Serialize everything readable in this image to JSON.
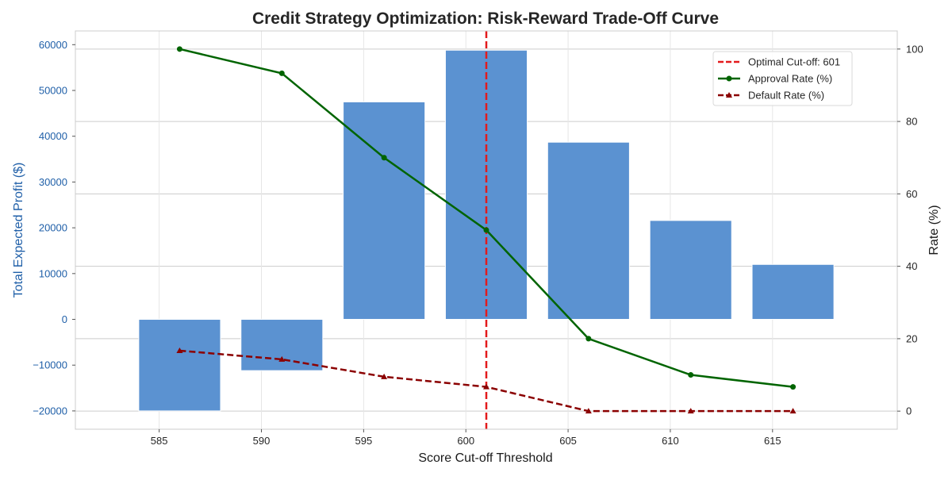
{
  "chart_data": {
    "type": "bar",
    "title": "Credit Strategy Optimization: Risk-Reward Trade-Off Curve",
    "xlabel": "Score Cut-off Threshold",
    "ylabel_left": "Total Expected Profit ($)",
    "ylabel_right": "Rate (%)",
    "x": [
      586,
      591,
      596,
      601,
      606,
      611,
      616
    ],
    "x_ticks": [
      585,
      590,
      595,
      600,
      605,
      610,
      615
    ],
    "x_range": [
      580.9,
      621.1
    ],
    "y_left_ticks": [
      -20000,
      -10000,
      0,
      10000,
      20000,
      30000,
      40000,
      50000,
      60000
    ],
    "y_left_range": [
      -24000,
      63000
    ],
    "y_right_ticks": [
      0,
      20,
      40,
      60,
      80,
      100
    ],
    "y_right_range": [
      -5,
      105
    ],
    "bar_width": 4,
    "grid": true,
    "legend_position": "upper-right",
    "series": [
      {
        "name": "Total Expected Profit ($)",
        "kind": "bar",
        "axis": "left",
        "color": "#5b92d1",
        "values": [
          -20000,
          -11200,
          47500,
          58800,
          38700,
          21600,
          12000
        ]
      },
      {
        "name": "Approval Rate (%)",
        "kind": "line",
        "axis": "right",
        "color": "#006400",
        "marker": "circle",
        "values": [
          100,
          93.3,
          70,
          50,
          20,
          10,
          6.7
        ]
      },
      {
        "name": "Default Rate (%)",
        "kind": "line",
        "axis": "right",
        "color": "#8b0000",
        "marker": "triangle",
        "dashed": true,
        "values": [
          16.7,
          14.3,
          9.5,
          6.7,
          0,
          0,
          0
        ]
      }
    ],
    "cutoff_line": {
      "label": "Optimal Cut-off: 601",
      "x": 601,
      "color": "#e31a1c"
    }
  }
}
